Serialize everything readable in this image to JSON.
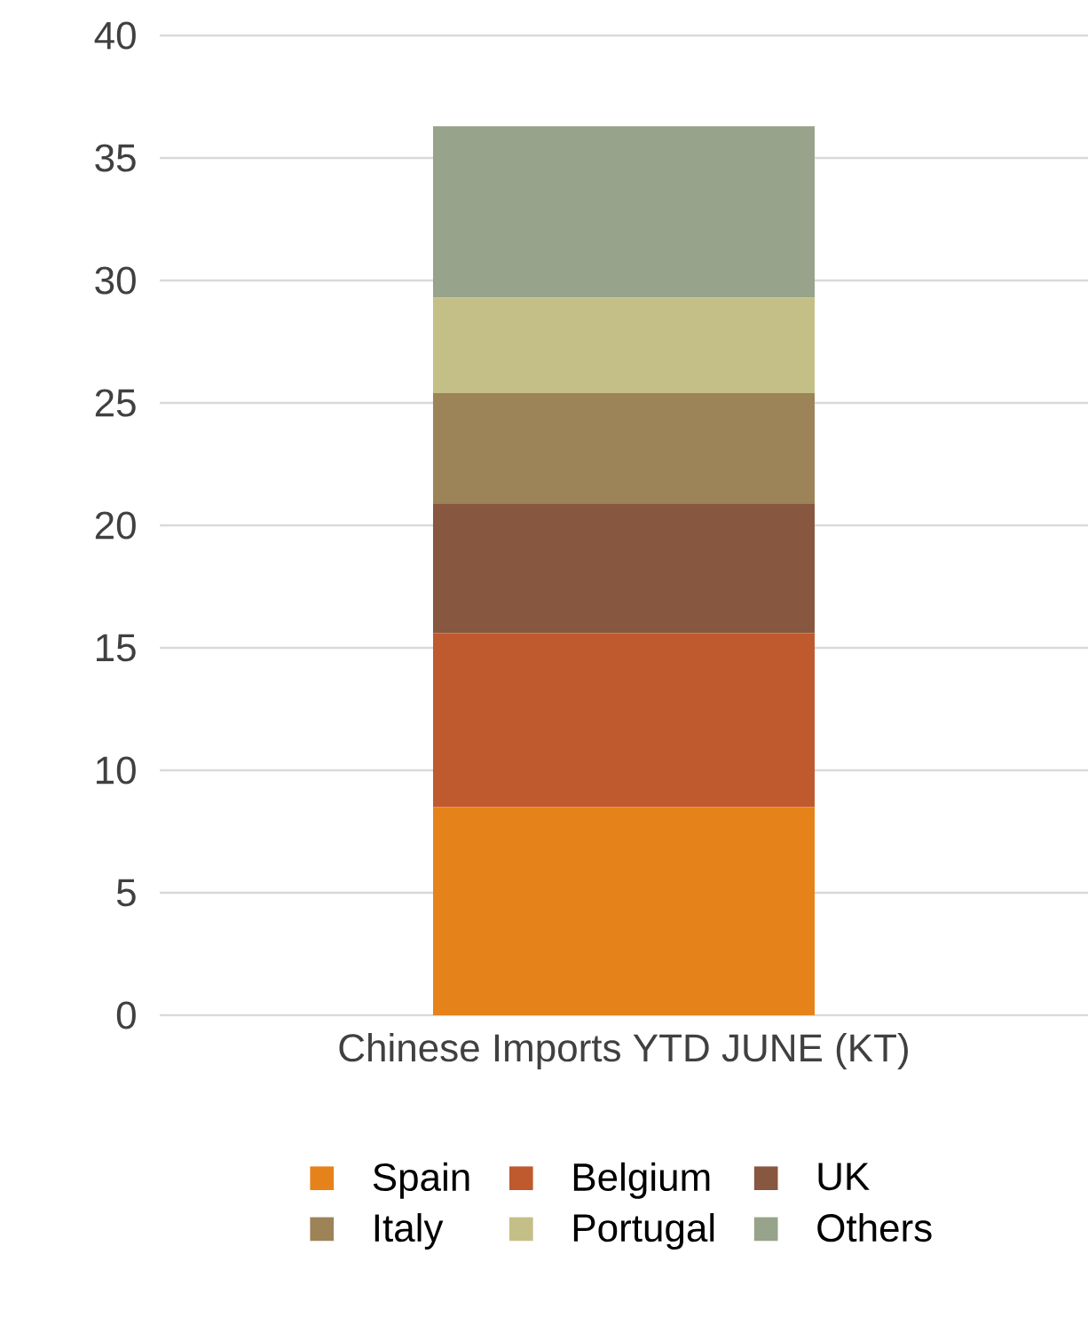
{
  "chart_data": {
    "type": "bar",
    "stacked": true,
    "categories": [
      "Chinese Imports YTD JUNE (KT)"
    ],
    "series": [
      {
        "name": "Spain",
        "color": "#e6821a",
        "values": [
          8.5
        ]
      },
      {
        "name": "Belgium",
        "color": "#bf5a2e",
        "values": [
          7.1
        ]
      },
      {
        "name": "UK",
        "color": "#875740",
        "values": [
          5.3
        ]
      },
      {
        "name": "Italy",
        "color": "#9c8358",
        "values": [
          4.5
        ]
      },
      {
        "name": "Portugal",
        "color": "#c4bf87",
        "values": [
          3.9
        ]
      },
      {
        "name": "Others",
        "color": "#97a38a",
        "values": [
          7.0
        ]
      }
    ],
    "ylim": [
      0,
      40
    ],
    "yticks": [
      0,
      5,
      10,
      15,
      20,
      25,
      30,
      35,
      40
    ],
    "grid": "y",
    "legend": "bottom"
  }
}
